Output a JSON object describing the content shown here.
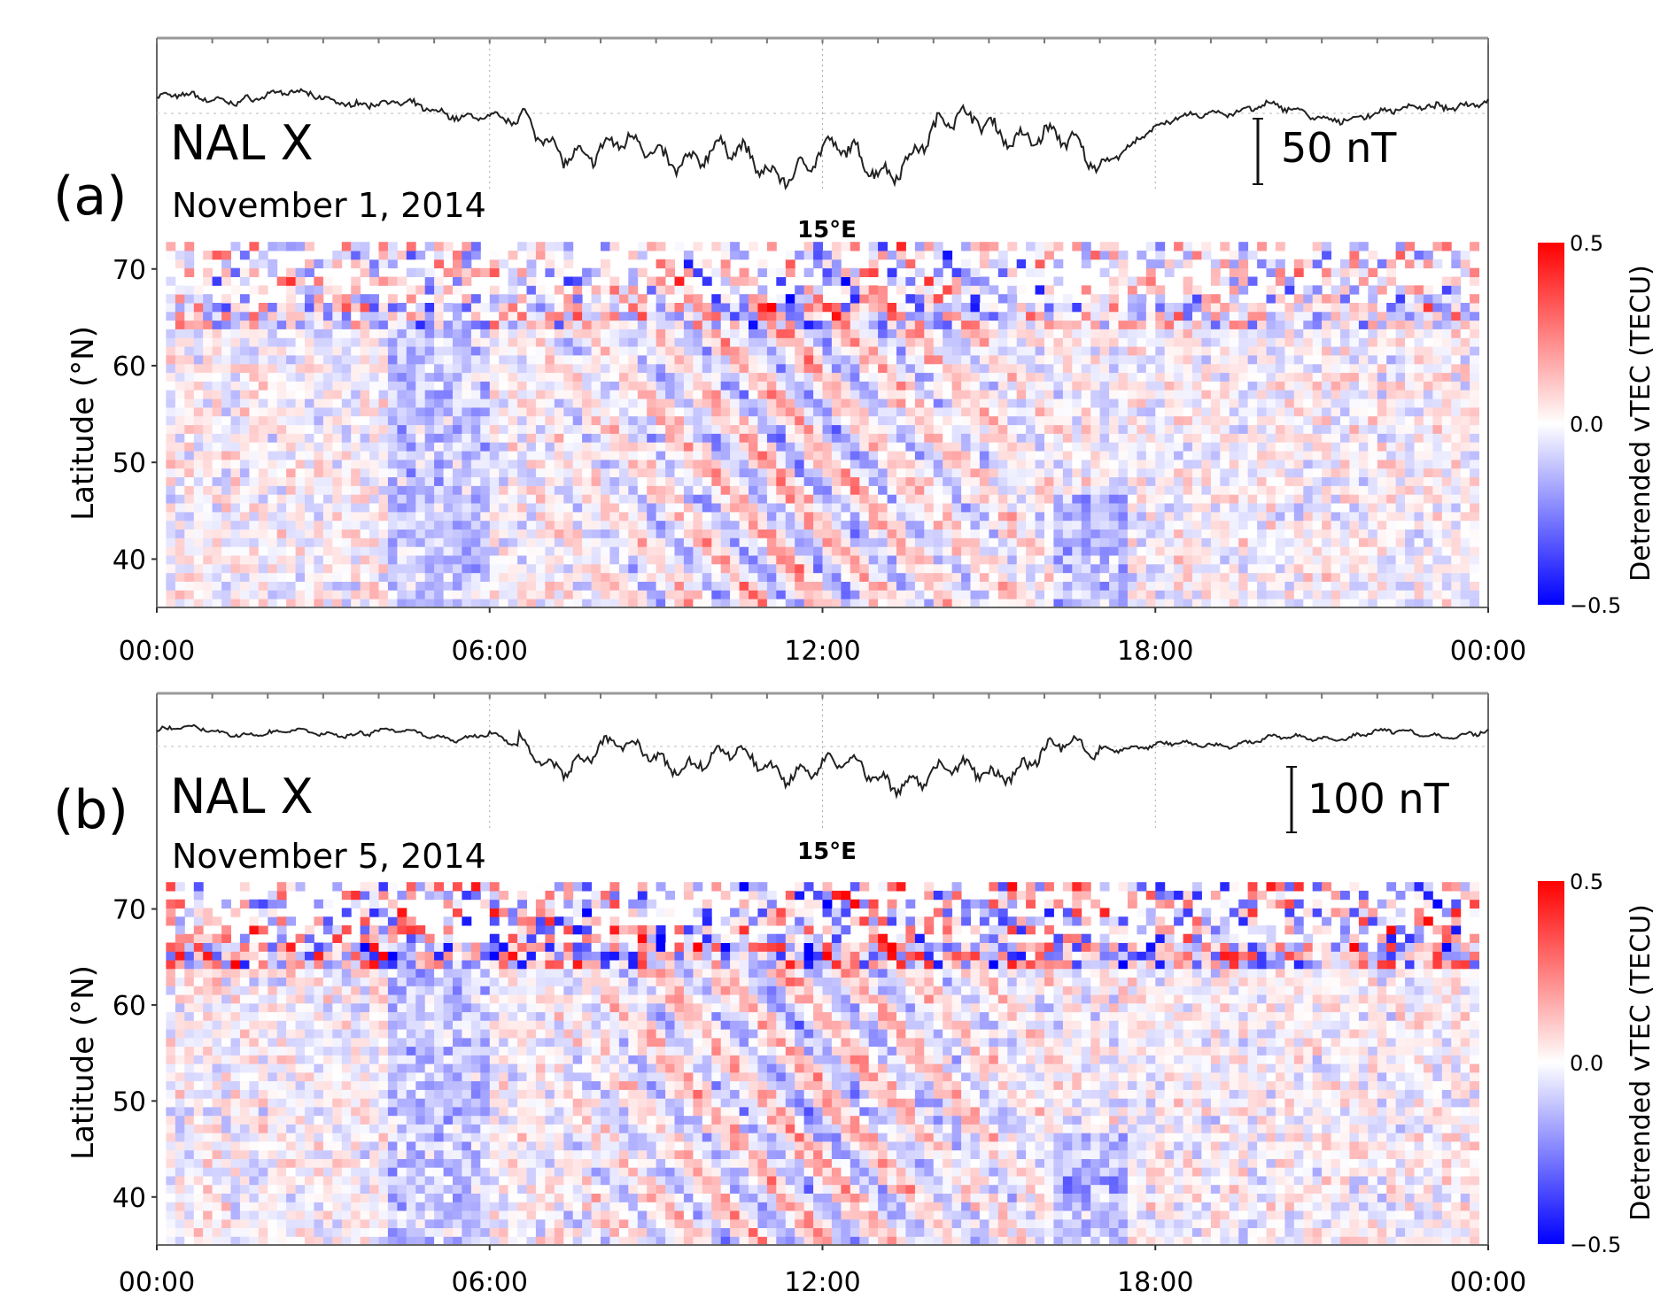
{
  "chart_data": [
    {
      "panel_label": "(a)",
      "type": "heatmap",
      "date": "November 1, 2014",
      "magnetometer": {
        "label": "NAL X",
        "scale_bar": "50 nT",
        "scale_bar_nT": 50,
        "hours": [
          0,
          1,
          2,
          3,
          4,
          5,
          6,
          7,
          8,
          9,
          10,
          11,
          12,
          13,
          14,
          15,
          16,
          17,
          18,
          19,
          20,
          21,
          22,
          23,
          24
        ],
        "values_nT_relative": [
          0,
          -2,
          2,
          0,
          -5,
          -10,
          -15,
          -30,
          -45,
          -40,
          -45,
          -55,
          -45,
          -55,
          -30,
          -15,
          -35,
          -50,
          -25,
          -10,
          -8,
          -15,
          -15,
          -5,
          -5
        ]
      },
      "annotation": "15°E",
      "ylabel": "Latitude (°N)",
      "ylim": [
        35,
        73
      ],
      "yticks": [
        "40",
        "50",
        "60",
        "70"
      ],
      "xticks": [
        "00:00",
        "06:00",
        "12:00",
        "18:00",
        "00:00"
      ],
      "colorbar": {
        "label": "Detrended vTEC (TECU)",
        "range": [
          -0.5,
          0.5
        ],
        "ticks": [
          "0.5",
          "0.0",
          "−0.5"
        ],
        "colors": [
          "#0000ff",
          "#ffffff",
          "#ff0000"
        ]
      }
    },
    {
      "panel_label": "(b)",
      "type": "heatmap",
      "date": "November 5, 2014",
      "magnetometer": {
        "label": "NAL X",
        "scale_bar": "100 nT",
        "scale_bar_nT": 100,
        "hours": [
          0,
          1,
          2,
          3,
          4,
          5,
          6,
          7,
          8,
          9,
          10,
          11,
          12,
          13,
          14,
          15,
          16,
          17,
          18,
          19,
          20,
          21,
          22,
          23,
          24
        ],
        "values_nT_relative": [
          0,
          0,
          -5,
          -5,
          0,
          -10,
          -5,
          -50,
          -30,
          -40,
          -45,
          -50,
          -60,
          -65,
          -75,
          -60,
          -40,
          -25,
          -25,
          -20,
          -15,
          -10,
          -5,
          -5,
          -5
        ]
      },
      "annotation": "15°E",
      "ylabel": "Latitude (°N)",
      "ylim": [
        35,
        73
      ],
      "yticks": [
        "40",
        "50",
        "60",
        "70"
      ],
      "xticks": [
        "00:00",
        "06:00",
        "12:00",
        "18:00",
        "00:00"
      ],
      "colorbar": {
        "label": "Detrended vTEC (TECU)",
        "range": [
          -0.5,
          0.5
        ],
        "ticks": [
          "0.5",
          "0.0",
          "−0.5"
        ],
        "colors": [
          "#0000ff",
          "#ffffff",
          "#ff0000"
        ]
      }
    }
  ]
}
